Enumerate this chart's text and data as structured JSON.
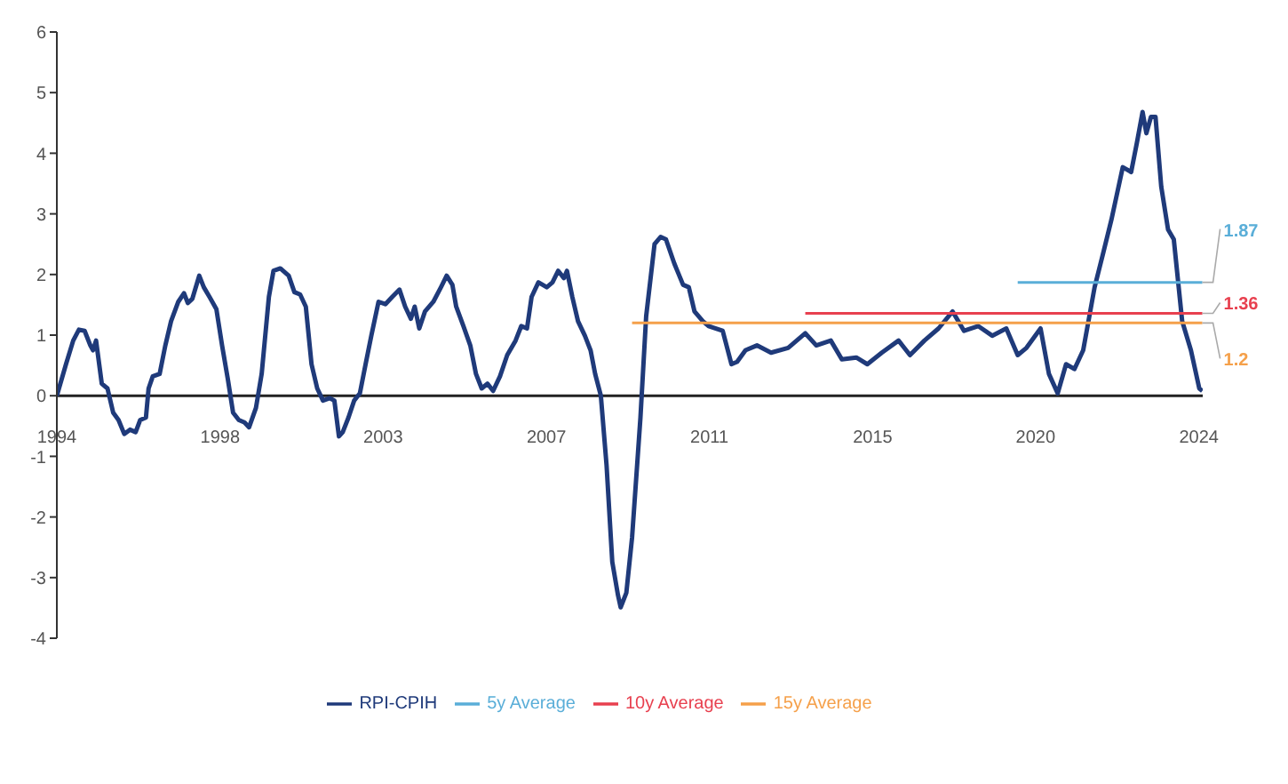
{
  "chart_data": {
    "type": "line",
    "xlim": [
      1994,
      2024.1
    ],
    "xticks": [
      1994,
      {
        "value": 1998.29,
        "label": "1998"
      },
      {
        "value": 2002.57,
        "label": "2003"
      },
      {
        "value": 2006.86,
        "label": "2007"
      },
      {
        "value": 2011.14,
        "label": "2011"
      },
      {
        "value": 2015.43,
        "label": "2015"
      },
      {
        "value": 2019.71,
        "label": "2020"
      },
      2024
    ],
    "ylim": [
      -4,
      6
    ],
    "yticks": [
      -4,
      -3,
      -2,
      -1,
      0,
      1,
      2,
      3,
      4,
      5,
      6
    ],
    "grid": false,
    "legend": "bottom",
    "marker": "none",
    "series": [
      {
        "name": "RPI-CPIH",
        "color": "#1f3a7a",
        "x": [
          1994,
          1994.24,
          1994.43,
          1994.58,
          1994.73,
          1994.88,
          1994.95,
          1995.03,
          1995.18,
          1995.33,
          1995.48,
          1995.62,
          1995.77,
          1995.92,
          1996.07,
          1996.19,
          1996.34,
          1996.41,
          1996.52,
          1996.7,
          1996.85,
          1997,
          1997.19,
          1997.34,
          1997.44,
          1997.56,
          1997.74,
          1997.86,
          1998.01,
          1998.19,
          1998.34,
          1998.49,
          1998.63,
          1998.78,
          1998.93,
          1999.05,
          1999.23,
          1999.38,
          1999.57,
          1999.69,
          1999.87,
          2000.09,
          2000.24,
          2000.39,
          2000.54,
          2000.69,
          2000.84,
          2000.99,
          2001.17,
          2001.29,
          2001.41,
          2001.51,
          2001.66,
          2001.81,
          2001.96,
          2002.11,
          2002.26,
          2002.45,
          2002.63,
          2002.81,
          2003,
          2003.15,
          2003.3,
          2003.4,
          2003.52,
          2003.67,
          2003.89,
          2004.09,
          2004.24,
          2004.39,
          2004.49,
          2004.68,
          2004.86,
          2005.01,
          2005.16,
          2005.31,
          2005.46,
          2005.64,
          2005.83,
          2006.05,
          2006.2,
          2006.35,
          2006.47,
          2006.65,
          2006.87,
          2007.02,
          2007.17,
          2007.32,
          2007.4,
          2007.54,
          2007.69,
          2007.87,
          2008.02,
          2008.14,
          2008.29,
          2008.44,
          2008.59,
          2008.74,
          2008.81,
          2008.96,
          2009.11,
          2009.33,
          2009.48,
          2009.7,
          2009.86,
          2010,
          2010.22,
          2010.45,
          2010.6,
          2010.75,
          2010.97,
          2011.12,
          2011.49,
          2011.72,
          2011.87,
          2012.09,
          2012.39,
          2012.76,
          2013.21,
          2013.66,
          2013.95,
          2014.33,
          2014.62,
          2015,
          2015.29,
          2015.67,
          2016.11,
          2016.41,
          2016.79,
          2017.16,
          2017.53,
          2017.83,
          2018.2,
          2018.57,
          2018.94,
          2019.24,
          2019.47,
          2019.84,
          2020.06,
          2020.29,
          2020.51,
          2020.73,
          2020.96,
          2021.26,
          2021.48,
          2021.7,
          2022,
          2022.22,
          2022.37,
          2022.52,
          2022.62,
          2022.74,
          2022.86,
          2023.01,
          2023.19,
          2023.34,
          2023.56,
          2023.79,
          2024.01,
          2024.09
        ],
        "values": [
          0,
          0.52,
          0.91,
          1.09,
          1.07,
          0.83,
          0.75,
          0.91,
          0.2,
          0.12,
          -0.28,
          -0.4,
          -0.63,
          -0.56,
          -0.6,
          -0.4,
          -0.36,
          0.12,
          0.32,
          0.36,
          0.83,
          1.23,
          1.55,
          1.69,
          1.53,
          1.6,
          1.98,
          1.79,
          1.63,
          1.43,
          0.83,
          0.28,
          -0.28,
          -0.4,
          -0.44,
          -0.52,
          -0.2,
          0.36,
          1.63,
          2.06,
          2.1,
          1.98,
          1.71,
          1.67,
          1.47,
          0.52,
          0.12,
          -0.08,
          -0.04,
          -0.08,
          -0.67,
          -0.6,
          -0.36,
          -0.08,
          0.04,
          0.52,
          0.99,
          1.55,
          1.51,
          1.63,
          1.75,
          1.47,
          1.27,
          1.47,
          1.11,
          1.39,
          1.55,
          1.79,
          1.98,
          1.83,
          1.47,
          1.15,
          0.83,
          0.36,
          0.12,
          0.2,
          0.08,
          0.32,
          0.67,
          0.91,
          1.15,
          1.11,
          1.63,
          1.87,
          1.79,
          1.87,
          2.06,
          1.94,
          2.06,
          1.63,
          1.23,
          0.99,
          0.75,
          0.36,
          0,
          -1.15,
          -2.74,
          -3.29,
          -3.49,
          -3.25,
          -2.34,
          -0.36,
          1.31,
          2.5,
          2.62,
          2.58,
          2.18,
          1.83,
          1.79,
          1.39,
          1.23,
          1.15,
          1.07,
          0.52,
          0.56,
          0.75,
          0.83,
          0.71,
          0.79,
          1.03,
          0.83,
          0.91,
          0.6,
          0.63,
          0.52,
          0.71,
          0.91,
          0.67,
          0.91,
          1.11,
          1.39,
          1.07,
          1.15,
          0.99,
          1.11,
          0.67,
          0.79,
          1.11,
          0.36,
          0.04,
          0.52,
          0.44,
          0.75,
          1.79,
          2.34,
          2.9,
          3.77,
          3.69,
          4.17,
          4.68,
          4.33,
          4.6,
          4.6,
          3.45,
          2.74,
          2.58,
          1.23,
          0.75,
          0.12,
          0.08
        ]
      },
      {
        "name": "5y Average",
        "color": "#5aaed8",
        "x": [
          2019.24,
          2024.09
        ],
        "values": [
          1.87,
          1.87
        ],
        "value_labels": [
          null,
          "1.87"
        ]
      },
      {
        "name": "10y Average",
        "color": "#e8404f",
        "x": [
          2013.66,
          2024.09
        ],
        "values": [
          1.36,
          1.36
        ],
        "value_labels": [
          null,
          "1.36"
        ]
      },
      {
        "name": "15y Average",
        "color": "#f5a04a",
        "x": [
          2009.11,
          2024.09
        ],
        "values": [
          1.2,
          1.2
        ],
        "value_labels": [
          null,
          "1.2"
        ]
      }
    ]
  }
}
